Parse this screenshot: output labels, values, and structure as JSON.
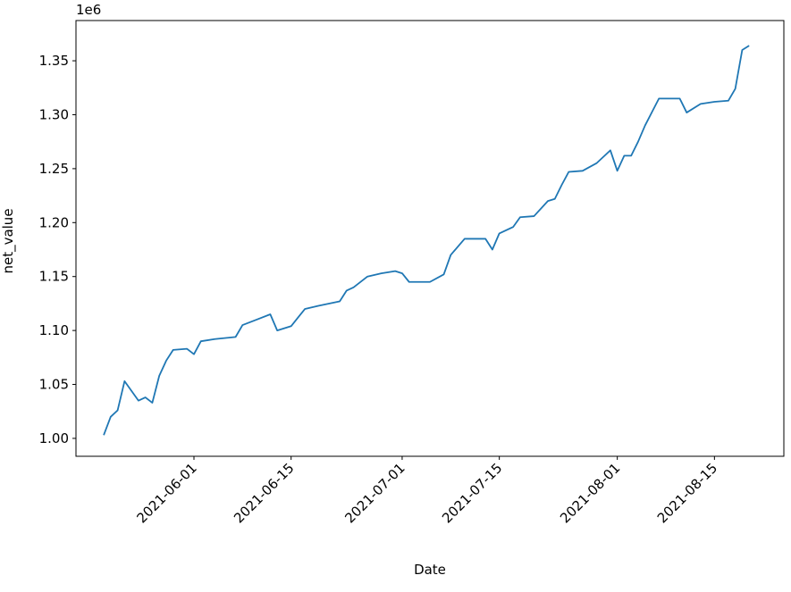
{
  "chart_data": {
    "type": "line",
    "x_label": "Date",
    "y_label": "net_value",
    "y_offset_label": "1e6",
    "x": [
      "2021-05-19",
      "2021-05-20",
      "2021-05-21",
      "2021-05-22",
      "2021-05-24",
      "2021-05-25",
      "2021-05-26",
      "2021-05-27",
      "2021-05-28",
      "2021-05-29",
      "2021-05-31",
      "2021-06-01",
      "2021-06-02",
      "2021-06-04",
      "2021-06-07",
      "2021-06-08",
      "2021-06-10",
      "2021-06-12",
      "2021-06-13",
      "2021-06-15",
      "2021-06-16",
      "2021-06-17",
      "2021-06-19",
      "2021-06-22",
      "2021-06-23",
      "2021-06-24",
      "2021-06-26",
      "2021-06-28",
      "2021-06-30",
      "2021-07-01",
      "2021-07-02",
      "2021-07-05",
      "2021-07-07",
      "2021-07-08",
      "2021-07-10",
      "2021-07-13",
      "2021-07-14",
      "2021-07-15",
      "2021-07-17",
      "2021-07-18",
      "2021-07-20",
      "2021-07-22",
      "2021-07-23",
      "2021-07-24",
      "2021-07-25",
      "2021-07-27",
      "2021-07-29",
      "2021-07-31",
      "2021-08-01",
      "2021-08-02",
      "2021-08-03",
      "2021-08-04",
      "2021-08-05",
      "2021-08-07",
      "2021-08-10",
      "2021-08-11",
      "2021-08-13",
      "2021-08-15",
      "2021-08-17",
      "2021-08-18",
      "2021-08-19",
      "2021-08-20"
    ],
    "series": [
      {
        "name": "net_value",
        "color": "#1f77b4",
        "values": [
          1003000,
          1020000,
          1026000,
          1053000,
          1035000,
          1038000,
          1033000,
          1058000,
          1072000,
          1082000,
          1083000,
          1078000,
          1090000,
          1092000,
          1094000,
          1105000,
          1110000,
          1115000,
          1100000,
          1104000,
          1112000,
          1120000,
          1123000,
          1127000,
          1137000,
          1140000,
          1150000,
          1153000,
          1155000,
          1153000,
          1145000,
          1145000,
          1152000,
          1170000,
          1185000,
          1185000,
          1175000,
          1190000,
          1196000,
          1205000,
          1206000,
          1220000,
          1222000,
          1235000,
          1247000,
          1248000,
          1255000,
          1267000,
          1248000,
          1262000,
          1262000,
          1275000,
          1290000,
          1315000,
          1315000,
          1302000,
          1310000,
          1312000,
          1313000,
          1324000,
          1360000,
          1364000
        ]
      }
    ],
    "xlim": [
      "2021-05-15",
      "2021-08-25"
    ],
    "xticks": [
      "2021-06-01",
      "2021-06-15",
      "2021-07-01",
      "2021-07-15",
      "2021-08-01",
      "2021-08-15"
    ],
    "ylim": [
      983400,
      1387300
    ],
    "yticks": [
      {
        "value": 1000000,
        "label": "1.00"
      },
      {
        "value": 1050000,
        "label": "1.05"
      },
      {
        "value": 1100000,
        "label": "1.10"
      },
      {
        "value": 1150000,
        "label": "1.15"
      },
      {
        "value": 1200000,
        "label": "1.20"
      },
      {
        "value": 1250000,
        "label": "1.25"
      },
      {
        "value": 1300000,
        "label": "1.30"
      },
      {
        "value": 1350000,
        "label": "1.35"
      }
    ],
    "grid": false
  }
}
